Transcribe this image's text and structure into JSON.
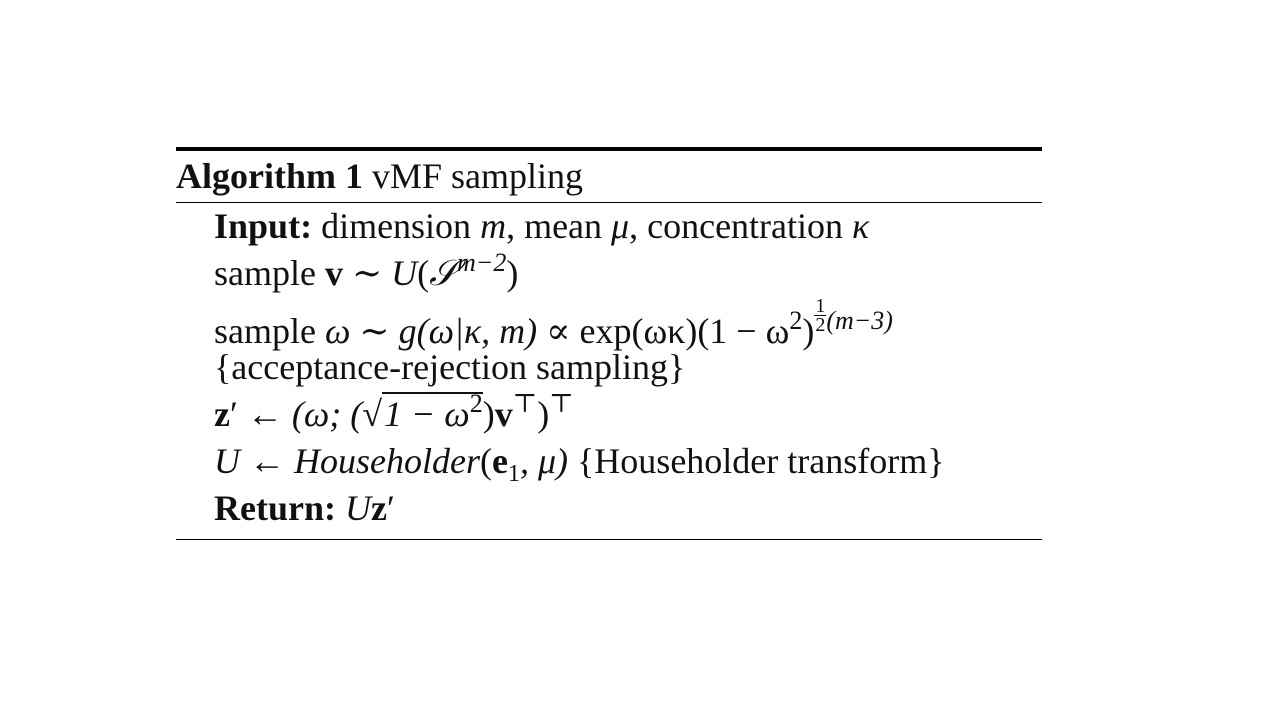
{
  "algorithm": {
    "caption_label": "Algorithm 1",
    "caption_title": "vMF sampling",
    "input_keyword": "Input:",
    "input_text_1": "dimension",
    "input_var_1": "m",
    "input_text_2": ", mean",
    "input_var_2": "μ",
    "input_text_3": ", concentration",
    "input_var_3": "κ",
    "line2_prefix": "sample",
    "line2_vec": "v",
    "line2_rel": "∼",
    "line2_dist": "U",
    "line2_open": "(",
    "line2_set": "𝒮",
    "line2_sup": "m−2",
    "line2_close": ")",
    "line3_prefix": "sample",
    "line3_omega": "ω",
    "line3_rel": "∼",
    "line3_func": "g",
    "line3_args": "(ω|κ, m)",
    "line3_prop": "∝",
    "line3_exp": "exp(ωκ)(1 − ω",
    "line3_sq": "2",
    "line3_close": ")",
    "line3_frac_num": "1",
    "line3_frac_den": "2",
    "line3_pow_rest": "(m−3)",
    "line4_comment": "{acceptance-rejection sampling}",
    "line5_z": "z",
    "line5_prime": "′",
    "line5_arrow": "←",
    "line5_open": "(ω; (",
    "line5_sqrt": "√",
    "line5_sqrt_body": "1 − ω",
    "line5_sq": "2",
    "line5_after": ")",
    "line5_v": "v",
    "line5_T1": "⊤",
    "line5_close": ")",
    "line5_T2": "⊤",
    "line6_U": "U",
    "line6_arrow": "←",
    "line6_func": "Householder",
    "line6_open": "(",
    "line6_e": "e",
    "line6_sub": "1",
    "line6_rest": ", μ)",
    "line6_comment": "{Householder transform}",
    "return_keyword": "Return:",
    "return_U": "U",
    "return_z": "z",
    "return_prime": "′"
  }
}
